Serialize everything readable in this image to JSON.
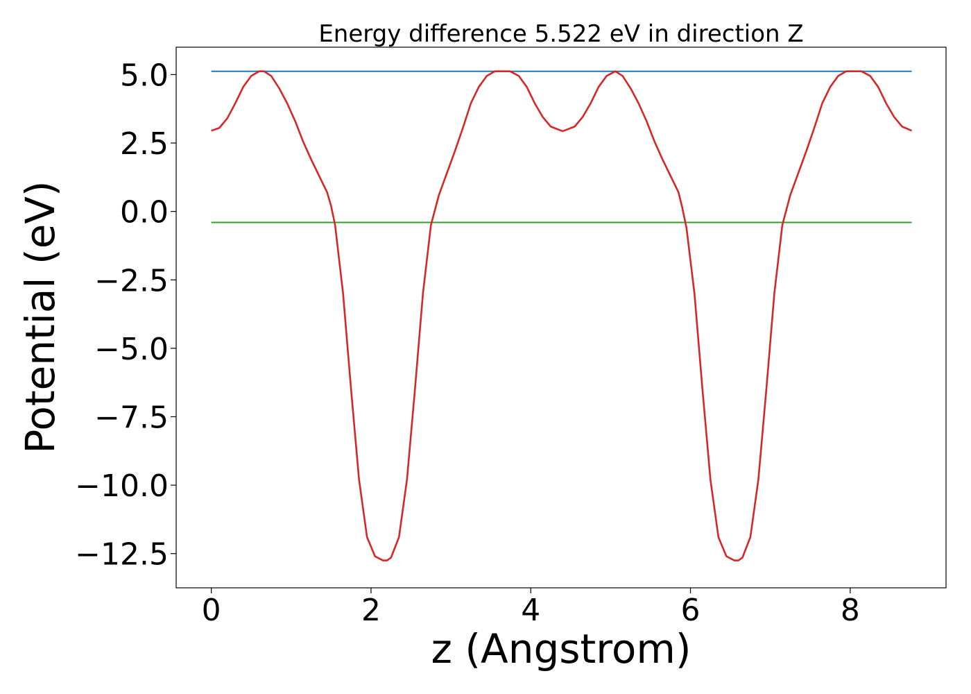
{
  "chart_data": {
    "type": "line",
    "title": "Energy difference 5.522 eV in direction Z",
    "xlabel": "z (Angstrom)",
    "ylabel": "Potential (eV)",
    "xlim": [
      -0.44,
      9.2
    ],
    "ylim": [
      -13.75,
      6.0
    ],
    "xticks": [
      0,
      2,
      4,
      6,
      8
    ],
    "xtick_labels": [
      "0",
      "2",
      "4",
      "6",
      "8"
    ],
    "yticks": [
      5.0,
      2.5,
      0.0,
      -2.5,
      -5.0,
      -7.5,
      -10.0,
      -12.5
    ],
    "ytick_labels": [
      "5.0",
      "2.5",
      "0.0",
      "−2.5",
      "−5.0",
      "−7.5",
      "−10.0",
      "−12.5"
    ],
    "grid": false,
    "series": [
      {
        "color": "#d62728",
        "x": [
          0.0,
          0.1,
          0.2,
          0.3,
          0.4,
          0.5,
          0.6,
          0.66,
          0.75,
          0.85,
          0.95,
          1.05,
          1.15,
          1.25,
          1.35,
          1.45,
          1.5,
          1.55,
          1.65,
          1.75,
          1.85,
          1.95,
          2.05,
          2.15,
          2.2,
          2.25,
          2.35,
          2.45,
          2.55,
          2.65,
          2.75,
          2.85,
          2.95,
          3.05,
          3.15,
          3.25,
          3.35,
          3.45,
          3.55,
          3.65,
          3.74,
          3.85,
          3.95,
          4.05,
          4.15,
          4.25,
          4.4,
          4.55,
          4.65,
          4.75,
          4.85,
          4.95,
          5.06,
          5.15,
          5.25,
          5.35,
          5.45,
          5.55,
          5.65,
          5.75,
          5.85,
          5.9,
          5.95,
          6.05,
          6.15,
          6.25,
          6.35,
          6.45,
          6.55,
          6.6,
          6.65,
          6.75,
          6.85,
          6.95,
          7.05,
          7.15,
          7.25,
          7.35,
          7.45,
          7.55,
          7.65,
          7.75,
          7.85,
          7.95,
          8.05,
          8.14,
          8.25,
          8.35,
          8.45,
          8.55,
          8.65,
          8.77
        ],
        "y": [
          2.95,
          3.05,
          3.4,
          3.95,
          4.55,
          4.95,
          5.12,
          5.12,
          4.95,
          4.5,
          3.95,
          3.3,
          2.55,
          1.9,
          1.3,
          0.7,
          0.2,
          -0.5,
          -3.0,
          -6.5,
          -9.8,
          -11.9,
          -12.6,
          -12.75,
          -12.75,
          -12.65,
          -11.9,
          -9.8,
          -6.5,
          -3.0,
          -0.5,
          0.6,
          1.4,
          2.2,
          3.05,
          3.95,
          4.55,
          4.95,
          5.12,
          5.12,
          5.12,
          4.95,
          4.55,
          3.95,
          3.45,
          3.1,
          2.93,
          3.1,
          3.45,
          3.95,
          4.55,
          4.95,
          5.12,
          4.95,
          4.5,
          3.95,
          3.3,
          2.55,
          1.9,
          1.3,
          0.7,
          0.1,
          -0.6,
          -3.0,
          -6.5,
          -9.8,
          -11.9,
          -12.6,
          -12.75,
          -12.75,
          -12.65,
          -11.9,
          -9.8,
          -6.5,
          -3.0,
          -0.5,
          0.6,
          1.4,
          2.2,
          3.05,
          3.95,
          4.55,
          4.95,
          5.12,
          5.12,
          5.12,
          4.95,
          4.55,
          3.95,
          3.45,
          3.1,
          2.95
        ]
      },
      {
        "color": "#1f77b4",
        "x": [
          0.0,
          8.77
        ],
        "y": [
          5.12,
          5.12
        ]
      },
      {
        "color": "#2ca02c",
        "x": [
          0.0,
          8.77
        ],
        "y": [
          -0.4,
          -0.4
        ]
      }
    ]
  }
}
